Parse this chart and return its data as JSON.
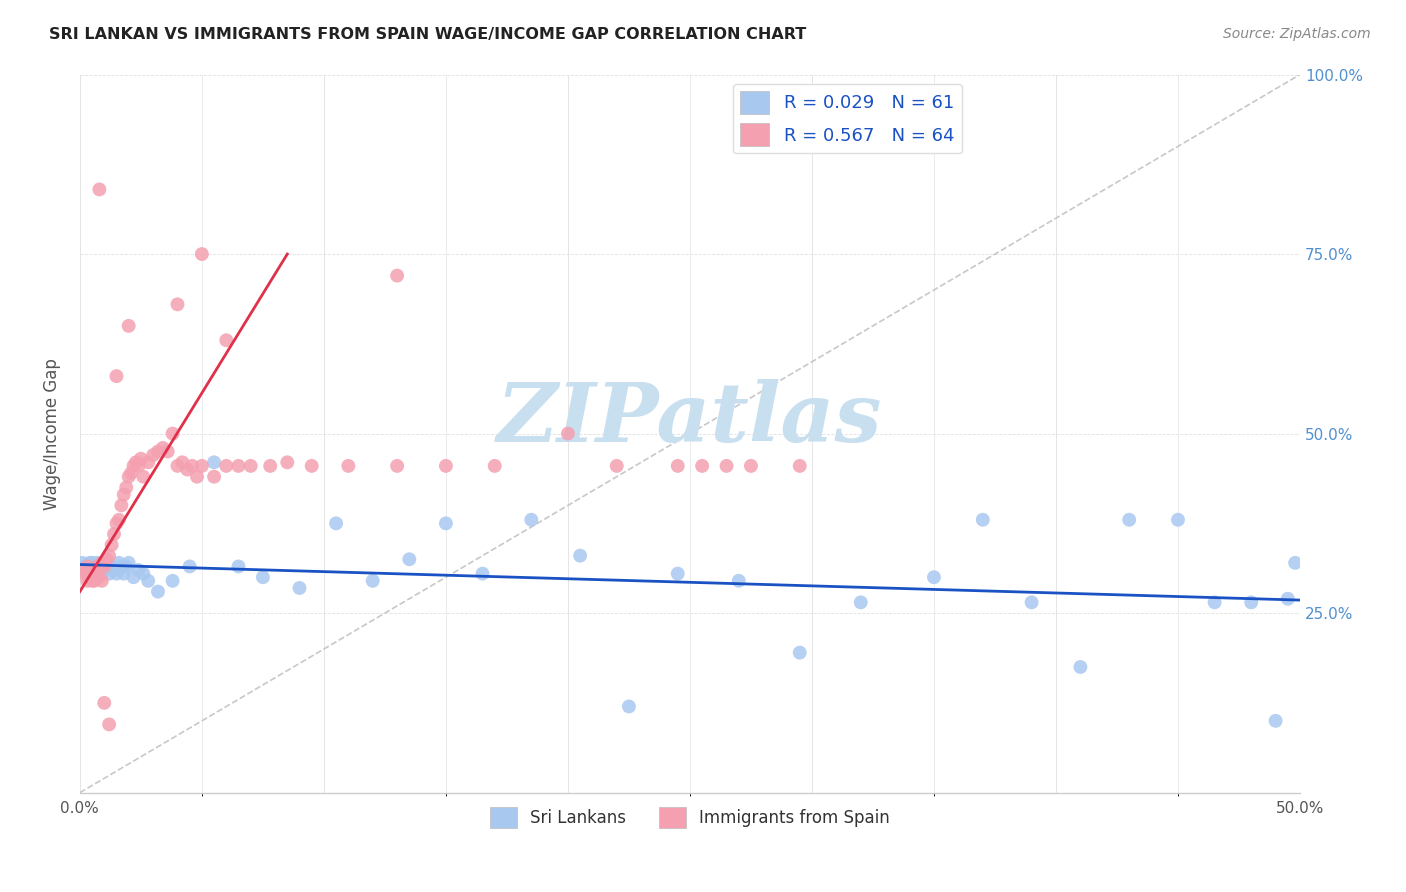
{
  "title": "SRI LANKAN VS IMMIGRANTS FROM SPAIN WAGE/INCOME GAP CORRELATION CHART",
  "source": "Source: ZipAtlas.com",
  "ylabel": "Wage/Income Gap",
  "xlim": [
    0.0,
    0.5
  ],
  "ylim": [
    0.0,
    1.0
  ],
  "x_ticks": [
    0.0,
    0.1,
    0.2,
    0.3,
    0.4,
    0.5
  ],
  "x_tick_labels": [
    "0.0%",
    "",
    "",
    "",
    "",
    "50.0%"
  ],
  "y_ticks_right": [
    0.0,
    0.25,
    0.5,
    0.75,
    1.0
  ],
  "y_tick_labels_right": [
    "",
    "25.0%",
    "50.0%",
    "75.0%",
    "100.0%"
  ],
  "sri_lanka_color": "#a8c8f0",
  "spain_color": "#f4a0b0",
  "trend_sri_lanka_color": "#1a52c4",
  "trend_spain_color": "#e0304a",
  "diagonal_color": "#c8c8c8",
  "R_sri_lanka": 0.029,
  "N_sri_lanka": 61,
  "R_spain": 0.567,
  "N_spain": 64,
  "sri_lankans_x": [
    0.001,
    0.002,
    0.003,
    0.003,
    0.004,
    0.004,
    0.005,
    0.005,
    0.006,
    0.006,
    0.007,
    0.007,
    0.008,
    0.008,
    0.009,
    0.01,
    0.01,
    0.011,
    0.012,
    0.013,
    0.014,
    0.015,
    0.016,
    0.017,
    0.018,
    0.019,
    0.02,
    0.022,
    0.024,
    0.026,
    0.028,
    0.032,
    0.038,
    0.045,
    0.055,
    0.065,
    0.075,
    0.09,
    0.105,
    0.12,
    0.135,
    0.15,
    0.165,
    0.185,
    0.205,
    0.225,
    0.245,
    0.27,
    0.295,
    0.32,
    0.35,
    0.37,
    0.39,
    0.41,
    0.43,
    0.45,
    0.465,
    0.48,
    0.49,
    0.495,
    0.498
  ],
  "sri_lankans_y": [
    0.32,
    0.315,
    0.31,
    0.305,
    0.32,
    0.315,
    0.32,
    0.31,
    0.305,
    0.315,
    0.32,
    0.31,
    0.315,
    0.305,
    0.32,
    0.31,
    0.315,
    0.32,
    0.305,
    0.315,
    0.31,
    0.305,
    0.32,
    0.315,
    0.305,
    0.315,
    0.32,
    0.3,
    0.31,
    0.305,
    0.295,
    0.28,
    0.295,
    0.315,
    0.46,
    0.315,
    0.3,
    0.285,
    0.375,
    0.295,
    0.325,
    0.375,
    0.305,
    0.38,
    0.33,
    0.12,
    0.305,
    0.295,
    0.195,
    0.265,
    0.3,
    0.38,
    0.265,
    0.175,
    0.38,
    0.38,
    0.265,
    0.265,
    0.1,
    0.27,
    0.32
  ],
  "spain_x": [
    0.001,
    0.002,
    0.003,
    0.003,
    0.004,
    0.004,
    0.005,
    0.005,
    0.006,
    0.006,
    0.007,
    0.007,
    0.008,
    0.008,
    0.009,
    0.009,
    0.01,
    0.01,
    0.011,
    0.012,
    0.013,
    0.014,
    0.015,
    0.016,
    0.017,
    0.018,
    0.019,
    0.02,
    0.021,
    0.022,
    0.023,
    0.024,
    0.025,
    0.026,
    0.028,
    0.03,
    0.032,
    0.034,
    0.036,
    0.038,
    0.04,
    0.042,
    0.044,
    0.046,
    0.048,
    0.05,
    0.055,
    0.06,
    0.065,
    0.07,
    0.078,
    0.085,
    0.095,
    0.11,
    0.13,
    0.15,
    0.17,
    0.2,
    0.22,
    0.245,
    0.255,
    0.265,
    0.275,
    0.295
  ],
  "spain_y": [
    0.31,
    0.305,
    0.295,
    0.315,
    0.31,
    0.3,
    0.295,
    0.3,
    0.31,
    0.295,
    0.315,
    0.3,
    0.3,
    0.315,
    0.32,
    0.295,
    0.315,
    0.32,
    0.325,
    0.33,
    0.345,
    0.36,
    0.375,
    0.38,
    0.4,
    0.415,
    0.425,
    0.44,
    0.445,
    0.455,
    0.46,
    0.455,
    0.465,
    0.44,
    0.46,
    0.47,
    0.475,
    0.48,
    0.475,
    0.5,
    0.455,
    0.46,
    0.45,
    0.455,
    0.44,
    0.455,
    0.44,
    0.455,
    0.455,
    0.455,
    0.455,
    0.46,
    0.455,
    0.455,
    0.455,
    0.455,
    0.455,
    0.5,
    0.455,
    0.455,
    0.455,
    0.455,
    0.455,
    0.455
  ],
  "spain_outliers_x": [
    0.008,
    0.05,
    0.13,
    0.04,
    0.02,
    0.06,
    0.015,
    0.01,
    0.012
  ],
  "spain_outliers_y": [
    0.84,
    0.75,
    0.72,
    0.68,
    0.65,
    0.63,
    0.58,
    0.125,
    0.095
  ],
  "watermark_text": "ZIPatlas",
  "watermark_color": "#c8dff0",
  "legend_R_color": "#1a52c4",
  "legend_label_color": "#333333"
}
